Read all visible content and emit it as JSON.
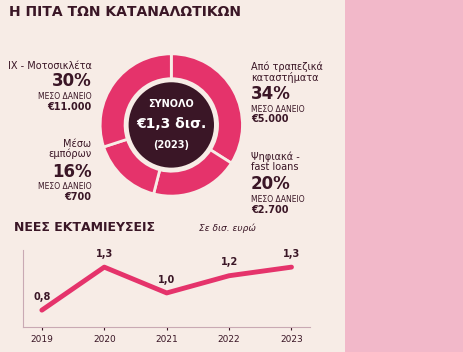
{
  "chart_data": [
    {
      "type": "pie",
      "title": "Η ΠΙΤΑ ΤΩΝ ΚΑΤΑΝΑΛΩΤΙΚΩΝ",
      "categories": [
        "Από τραπεζικά\nκαταστήματα",
        "Ψηφιακά -\nfast loans",
        "Μέσω\nεμπόρων",
        "ΙΧ - Μοτοσικλέτα"
      ],
      "values": [
        34,
        20,
        16,
        30
      ],
      "value_labels": [
        "34%",
        "20%",
        "16%",
        "30%"
      ],
      "data_labels": true,
      "avg_loan_title": "ΜΕΣΟ ΔΑΝΕΙΟ",
      "avg_loan": [
        5000,
        2700,
        700,
        11000
      ],
      "avg_loan_labels": [
        "€5.000",
        "€2.700",
        "€700",
        "€11.000"
      ],
      "center_label": [
        "ΣΥΝΟΛΟ",
        "€1,3 δισ.",
        "(2023)"
      ],
      "color": "#e5336b"
    },
    {
      "type": "line",
      "title": "ΝΕΕΣ ΕΚΤΑΜΙΕΥΣΕΙΣ",
      "subtitle": "Σε δισ. ευρώ",
      "categories": [
        "2019",
        "2020",
        "2021",
        "2022",
        "2023"
      ],
      "values": [
        0.8,
        1.3,
        1.0,
        1.2,
        1.3
      ],
      "value_labels": [
        "0,8",
        "1,3",
        "1,0",
        "1,2",
        "1,3"
      ],
      "data_labels": true,
      "ylim": [
        0.6,
        1.5
      ],
      "yticks": [],
      "tick_labels": "x",
      "color": "#e5336b"
    }
  ]
}
